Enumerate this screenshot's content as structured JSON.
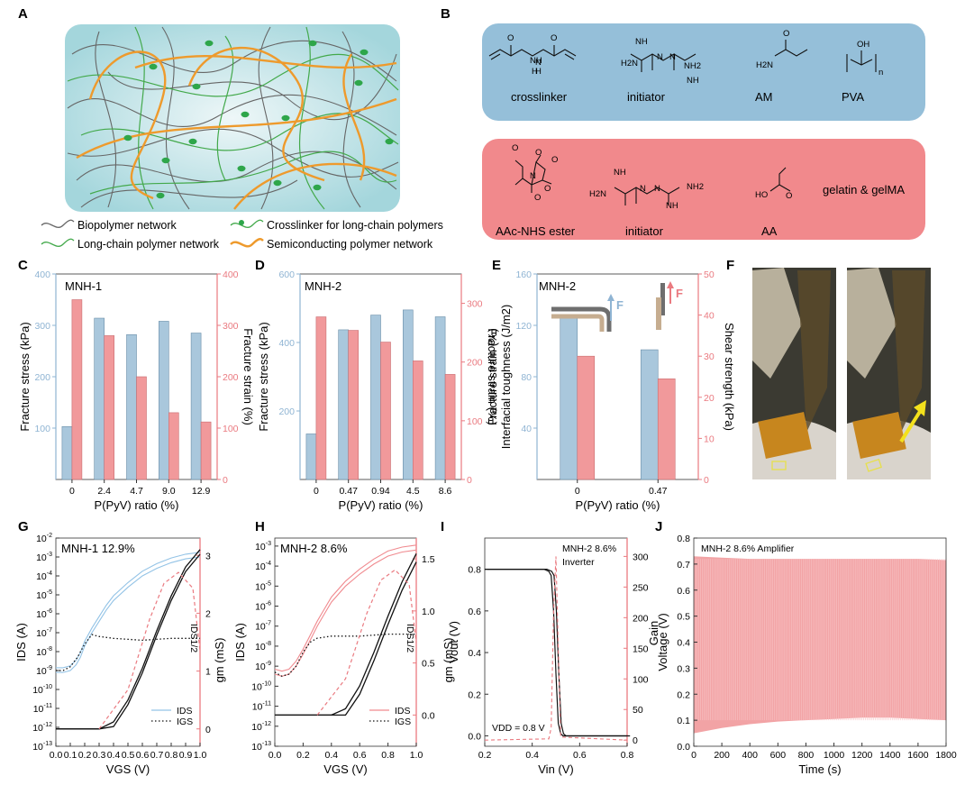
{
  "panel_labels": [
    "A",
    "B",
    "C",
    "D",
    "E",
    "F",
    "G",
    "H",
    "I",
    "J"
  ],
  "panel_a": {
    "legend": [
      "Biopolymer network",
      "Crosslinker for long-chain polymers",
      "Long-chain polymer network",
      "Semiconducting polymer network"
    ]
  },
  "panel_b": {
    "top_labels": [
      "crosslinker",
      "initiator",
      "AM",
      "PVA"
    ],
    "bottom_labels": [
      "AAc-NHS ester",
      "initiator",
      "AA",
      "gelatin & gelMA"
    ],
    "atoms": {
      "nh": "NH",
      "nh2": "NH2",
      "n": "N",
      "h": "H",
      "o": "O",
      "oh": "OH",
      "ho": "HO",
      "h2n": "H2N",
      "sub_n": "n"
    }
  },
  "colors": {
    "blue_bar": "#a9c7dc",
    "red_bar": "#f1999b",
    "blue_axis": "#8fb4d3",
    "red_axis": "#ea7a80",
    "box_blue": "#95bfd9",
    "box_red": "#f1898c",
    "light_blue_curve": "#93c3e6",
    "light_red_curve": "#f08a8f",
    "semiconducting": "#ee9a2c",
    "long_chain": "#43a94b"
  },
  "chart_data": [
    {
      "id": "C",
      "type": "bar",
      "title": "MNH-1",
      "xlabel": "P(PyV) ratio (%)",
      "ylabel_left": "Fracture stress (kPa)",
      "ylabel_right": "Fracture strain (%)",
      "categories": [
        "0",
        "2.4",
        "4.7",
        "9.0",
        "12.9"
      ],
      "ylim_left": [
        0,
        400
      ],
      "yticks_left": [
        "100",
        "200",
        "300",
        "400"
      ],
      "ylim_right": [
        0,
        400
      ],
      "yticks_right": [
        "0",
        "100",
        "200",
        "300",
        "400"
      ],
      "series": [
        {
          "name": "Fracture stress",
          "axis": "left",
          "values": [
            103,
            314,
            282,
            308,
            285
          ]
        },
        {
          "name": "Fracture strain",
          "axis": "right",
          "values": [
            350,
            280,
            200,
            130,
            112
          ]
        }
      ]
    },
    {
      "id": "D",
      "type": "bar",
      "title": "MNH-2",
      "xlabel": "P(PyV) ratio (%)",
      "ylabel_left": "Fracture stress (kPa)",
      "ylabel_right": "Fracture strain (%)",
      "categories": [
        "0",
        "0.47",
        "0.94",
        "4.5",
        "8.6"
      ],
      "ylim_left": [
        0,
        600
      ],
      "yticks_left": [
        "200",
        "400",
        "600"
      ],
      "ylim_right": [
        0,
        350
      ],
      "yticks_right": [
        "0",
        "100",
        "200",
        "300"
      ],
      "series": [
        {
          "name": "Fracture stress",
          "axis": "left",
          "values": [
            133,
            437,
            480,
            495,
            475
          ]
        },
        {
          "name": "Fracture strain",
          "axis": "right",
          "values": [
            277,
            254,
            234,
            202,
            179
          ]
        }
      ]
    },
    {
      "id": "E",
      "type": "bar",
      "title": "MNH-2",
      "xlabel": "P(PyV) ratio (%)",
      "ylabel_left": "Interfacial toughness (J/m2)",
      "ylabel_right": "Shear strength (kPa)",
      "categories": [
        "0",
        "0.47"
      ],
      "ylim_left": [
        0,
        160
      ],
      "yticks_left": [
        "40",
        "80",
        "120",
        "160"
      ],
      "ylim_right": [
        0,
        50
      ],
      "yticks_right": [
        "0",
        "10",
        "20",
        "30",
        "40",
        "50"
      ],
      "series": [
        {
          "name": "Interfacial toughness",
          "axis": "left",
          "values": [
            127,
            101
          ]
        },
        {
          "name": "Shear strength",
          "axis": "right",
          "values": [
            30,
            24.5
          ]
        }
      ],
      "inset_labels": [
        "F",
        "F"
      ]
    },
    {
      "id": "G",
      "type": "line",
      "title": "MNH-1 12.9%",
      "xlabel": "VGS (V)",
      "ylabel_left": "IDS (A)",
      "ylabel_right": "gm (mS)",
      "annotation": "IDS1/2",
      "xlim": [
        0,
        1.0
      ],
      "xticks": [
        "0.0",
        "0.1",
        "0.2",
        "0.3",
        "0.4",
        "0.5",
        "0.6",
        "0.7",
        "0.8",
        "0.9",
        "1.0"
      ],
      "yscale_left": "log",
      "ylim_left_exp": [
        -13,
        -2
      ],
      "ylim_right": [
        -0.3,
        3.3
      ],
      "yticks_right": [
        "0",
        "1",
        "2",
        "3"
      ],
      "legend": [
        "IDS",
        "IGS"
      ],
      "series": [
        {
          "name": "IDS",
          "x": [
            0.0,
            0.05,
            0.1,
            0.14,
            0.17,
            0.2,
            0.25,
            0.3,
            0.35,
            0.4,
            0.5,
            0.6,
            0.7,
            0.8,
            0.9,
            1.0
          ],
          "y_log10": [
            -9.1,
            -9.1,
            -9.0,
            -8.7,
            -8.3,
            -7.7,
            -7.0,
            -6.4,
            -5.8,
            -5.3,
            -4.6,
            -4.0,
            -3.6,
            -3.3,
            -3.1,
            -3.0
          ]
        },
        {
          "name": "IGS",
          "x": [
            0.0,
            0.05,
            0.1,
            0.15,
            0.2,
            0.25,
            0.3,
            0.4,
            0.6,
            0.8,
            1.0
          ],
          "y_log10": [
            -9.0,
            -9.0,
            -8.8,
            -8.3,
            -7.6,
            -7.1,
            -7.2,
            -7.3,
            -7.4,
            -7.3,
            -7.3
          ]
        },
        {
          "name": "IDS1/2",
          "x": [
            0.0,
            0.2,
            0.3,
            0.4,
            0.5,
            0.6,
            0.7,
            0.8,
            0.9,
            1.0
          ],
          "y": [
            0.0,
            0.0,
            0.0,
            0.12,
            0.5,
            1.05,
            1.7,
            2.3,
            2.8,
            3.1
          ]
        }
      ]
    },
    {
      "id": "H",
      "type": "line",
      "title": "MNH-2 8.6%",
      "xlabel": "VGS (V)",
      "ylabel_left": "IDS (A)",
      "ylabel_right": "gm (mS)",
      "annotation": "IDS1/2",
      "xlim": [
        0,
        1.0
      ],
      "xticks": [
        "0.0",
        "0.2",
        "0.4",
        "0.6",
        "0.8",
        "1.0"
      ],
      "yscale_left": "log",
      "ylim_left_exp": [
        -13,
        -2.6
      ],
      "ylim_right": [
        -0.3,
        1.7
      ],
      "yticks_right": [
        "0.0",
        "0.5",
        "1.0",
        "1.5"
      ],
      "legend": [
        "IDS",
        "IGS"
      ],
      "series": [
        {
          "name": "IDS",
          "x": [
            0.0,
            0.05,
            0.1,
            0.15,
            0.2,
            0.25,
            0.3,
            0.35,
            0.4,
            0.5,
            0.6,
            0.7,
            0.8,
            0.9,
            1.0
          ],
          "y_log10": [
            -9.4,
            -9.5,
            -9.4,
            -9.0,
            -8.4,
            -7.7,
            -7.0,
            -6.4,
            -5.8,
            -5.0,
            -4.4,
            -3.9,
            -3.5,
            -3.3,
            -3.2
          ]
        },
        {
          "name": "IGS",
          "x": [
            0.0,
            0.05,
            0.1,
            0.15,
            0.2,
            0.25,
            0.3,
            0.4,
            0.6,
            0.8,
            1.0
          ],
          "y_log10": [
            -9.3,
            -9.5,
            -9.4,
            -9.0,
            -8.3,
            -7.8,
            -7.6,
            -7.5,
            -7.5,
            -7.4,
            -7.4
          ]
        },
        {
          "name": "IDS1/2",
          "x": [
            0.0,
            0.3,
            0.4,
            0.5,
            0.6,
            0.7,
            0.8,
            0.9,
            1.0
          ],
          "y": [
            0.0,
            0.0,
            0.0,
            0.06,
            0.28,
            0.6,
            0.95,
            1.28,
            1.55
          ]
        }
      ]
    },
    {
      "id": "I",
      "type": "line",
      "title": "MNH-2 8.6%",
      "subtitle": "Inverter",
      "xlabel": "Vin (V)",
      "ylabel_left": "Vout (V)",
      "ylabel_right": "Gain",
      "annotation": "VDD = 0.8 V",
      "xlim": [
        0.2,
        0.8
      ],
      "xticks": [
        "0.2",
        "0.4",
        "0.6",
        "0.8"
      ],
      "ylim_left": [
        -0.05,
        0.95
      ],
      "yticks_left": [
        "0.0",
        "0.2",
        "0.4",
        "0.6",
        "0.8"
      ],
      "ylim_right": [
        -10,
        330
      ],
      "yticks_right": [
        "0",
        "50",
        "100",
        "150",
        "200",
        "250",
        "300"
      ],
      "series": [
        {
          "name": "Vout",
          "x": [
            0.2,
            0.45,
            0.47,
            0.48,
            0.49,
            0.5,
            0.51,
            0.52,
            0.53,
            0.8
          ],
          "y": [
            0.8,
            0.8,
            0.79,
            0.77,
            0.6,
            0.3,
            0.06,
            0.01,
            0.0,
            0.0
          ]
        },
        {
          "name": "Gain",
          "x": [
            0.2,
            0.47,
            0.48,
            0.49,
            0.5,
            0.51,
            0.52,
            0.8
          ],
          "y": [
            0,
            2,
            20,
            210,
            300,
            150,
            5,
            0
          ]
        }
      ]
    },
    {
      "id": "J",
      "type": "area",
      "title": "MNH-2 8.6%  Amplifier",
      "xlabel": "Time (s)",
      "ylabel": "Voltage (V)",
      "xlim": [
        0,
        1800
      ],
      "xticks": [
        "0",
        "200",
        "400",
        "600",
        "800",
        "1000",
        "1200",
        "1400",
        "1600",
        "1800"
      ],
      "ylim": [
        0.0,
        0.8
      ],
      "yticks": [
        "0.0",
        "0.1",
        "0.2",
        "0.3",
        "0.4",
        "0.5",
        "0.6",
        "0.7",
        "0.8"
      ],
      "envelope": {
        "time": [
          0,
          200,
          400,
          600,
          800,
          1000,
          1200,
          1400,
          1600,
          1800
        ],
        "upper": [
          0.73,
          0.725,
          0.72,
          0.72,
          0.72,
          0.72,
          0.72,
          0.72,
          0.72,
          0.715
        ],
        "lower": [
          0.05,
          0.07,
          0.085,
          0.095,
          0.1,
          0.105,
          0.11,
          0.11,
          0.105,
          0.1
        ]
      }
    }
  ]
}
